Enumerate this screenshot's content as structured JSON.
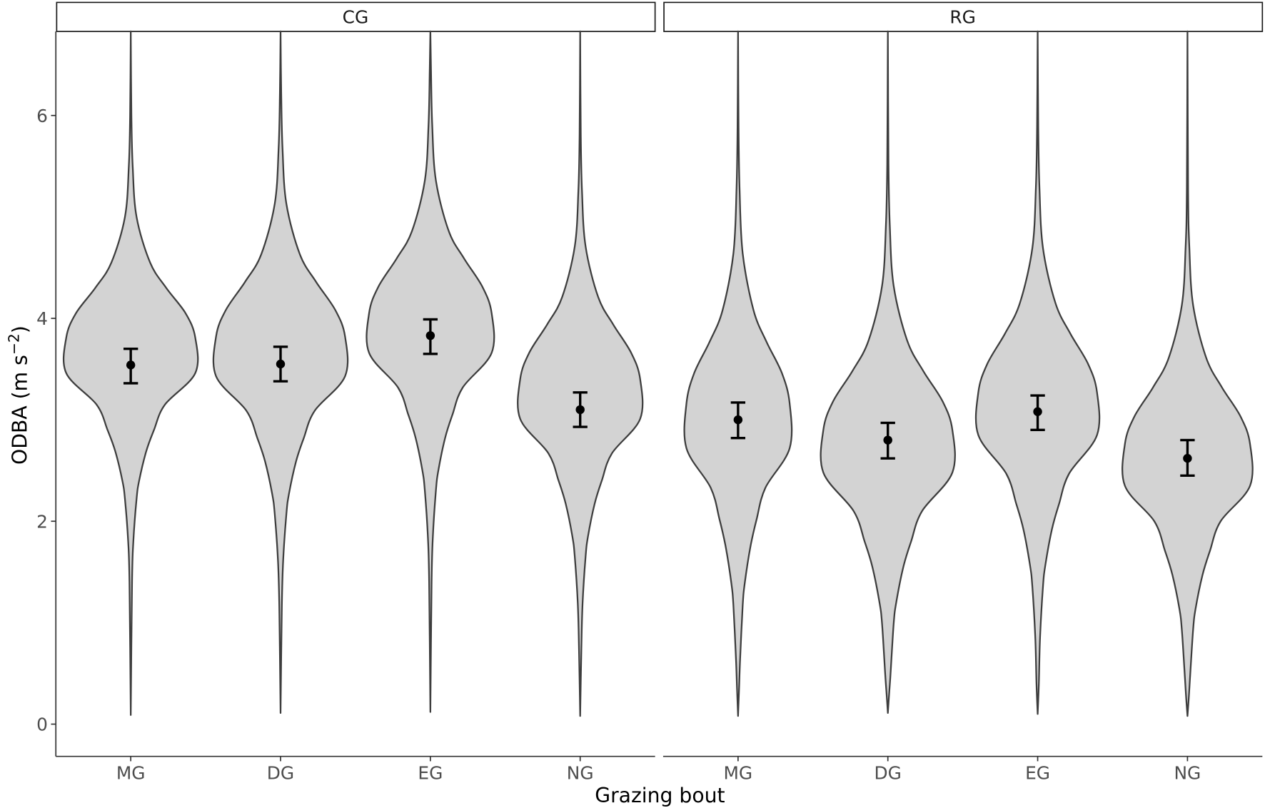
{
  "chart_data": {
    "type": "violin",
    "xlabel": "Grazing bout",
    "ylabel_main": "ODBA (m s",
    "ylabel_sup": "−2",
    "ylabel_close": ")",
    "ylim": [
      -0.35,
      6.83
    ],
    "yticks": [
      0,
      2,
      4,
      6
    ],
    "grid": false,
    "categories": [
      "MG",
      "DG",
      "EG",
      "NG"
    ],
    "density_widths": [
      0,
      0.01,
      0.03,
      0.09,
      0.3,
      0.55,
      0.85,
      1,
      1,
      0.53,
      0.36,
      0.24,
      0.13,
      0.09,
      0.04,
      0.02,
      0
    ],
    "colors": {
      "fill": "#d3d3d3",
      "outline": "#3d3d3d",
      "point": "#000000"
    },
    "panels": [
      {
        "label": "CG",
        "violins": [
          {
            "category": "MG",
            "mean": 3.54,
            "lower": 3.36,
            "upper": 3.7,
            "scale": 1.0,
            "density_y": [
              6.83,
              6.0,
              5.5,
              5.0,
              4.55,
              4.3,
              4.05,
              3.81,
              3.46,
              3.15,
              2.9,
              2.69,
              2.4,
              2.22,
              1.8,
              1.4,
              0.09
            ]
          },
          {
            "category": "DG",
            "mean": 3.55,
            "lower": 3.38,
            "upper": 3.72,
            "scale": 1.0,
            "density_y": [
              6.83,
              6.23,
              5.68,
              5.13,
              4.63,
              4.36,
              4.08,
              3.82,
              3.43,
              3.09,
              2.82,
              2.59,
              2.27,
              2.07,
              1.61,
              1.17,
              0.11
            ]
          },
          {
            "category": "EG",
            "mean": 3.83,
            "lower": 3.65,
            "upper": 3.99,
            "scale": 0.95,
            "density_y": [
              6.83,
              6.46,
              5.91,
              5.36,
              4.86,
              4.59,
              4.31,
              4.05,
              3.66,
              3.32,
              3.05,
              2.82,
              2.5,
              2.3,
              1.84,
              1.4,
              0.12
            ]
          },
          {
            "category": "NG",
            "mean": 3.1,
            "lower": 2.93,
            "upper": 3.27,
            "scale": 0.93,
            "density_y": [
              6.83,
              5.81,
              5.26,
              4.71,
              4.21,
              3.94,
              3.66,
              3.4,
              3.01,
              2.67,
              2.4,
              2.17,
              1.85,
              1.65,
              1.19,
              0.75,
              0.08
            ]
          }
        ]
      },
      {
        "label": "RG",
        "violins": [
          {
            "category": "MG",
            "mean": 3.0,
            "lower": 2.82,
            "upper": 3.17,
            "scale": 0.8,
            "density_y": [
              6.83,
              5.89,
              5.27,
              4.64,
              4.08,
              3.77,
              3.46,
              3.16,
              2.72,
              2.33,
              2.02,
              1.75,
              1.39,
              1.17,
              0.64,
              0.35,
              0.08
            ]
          },
          {
            "category": "DG",
            "mean": 2.8,
            "lower": 2.62,
            "upper": 2.97,
            "scale": 1.0,
            "density_y": [
              6.83,
              5.52,
              4.92,
              4.32,
              3.78,
              3.48,
              3.18,
              2.9,
              2.48,
              2.1,
              1.8,
              1.55,
              1.2,
              0.99,
              0.48,
              0.3,
              0.11
            ]
          },
          {
            "category": "EG",
            "mean": 3.08,
            "lower": 2.9,
            "upper": 3.24,
            "scale": 0.92,
            "density_y": [
              6.83,
              5.89,
              5.29,
              4.69,
              4.15,
              3.85,
              3.55,
              3.27,
              2.85,
              2.47,
              2.17,
              1.92,
              1.57,
              1.36,
              0.85,
              0.4,
              0.1
            ]
          },
          {
            "category": "NG",
            "mean": 2.62,
            "lower": 2.45,
            "upper": 2.8,
            "scale": 0.97,
            "density_y": [
              6.83,
              5.28,
              4.7,
              4.13,
              3.61,
              3.32,
              3.03,
              2.76,
              2.35,
              2.0,
              1.71,
              1.47,
              1.14,
              0.93,
              0.45,
              0.25,
              0.08
            ]
          }
        ]
      }
    ]
  }
}
